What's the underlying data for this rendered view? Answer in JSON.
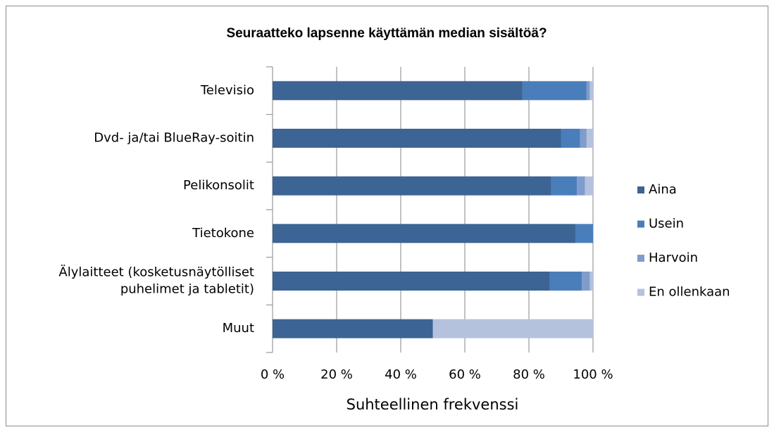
{
  "chart_data": {
    "type": "stacked_barh",
    "title": "Seuraatteko lapsenne käyttämän median sisältöä?",
    "x_label": "Suhteellinen frekvenssi",
    "categories": [
      "Televisio",
      "Dvd- ja/tai BlueRay-soitin",
      "Pelikonsolit",
      "Tietokone",
      "Älylaitteet (kosketusnäytölliset\npuhelimet ja tabletit)",
      "Muut"
    ],
    "series": [
      {
        "name": "Aina",
        "color": "#3c6494",
        "values": [
          78,
          90,
          87,
          94.5,
          86.5,
          50
        ]
      },
      {
        "name": "Usein",
        "color": "#4a7ebb",
        "values": [
          20,
          6,
          8,
          5.5,
          10,
          0
        ]
      },
      {
        "name": "Harvoin",
        "color": "#7f9ccc",
        "values": [
          1,
          2,
          2.5,
          0,
          2.5,
          0
        ]
      },
      {
        "name": "En ollenkaan",
        "color": "#b4c2de",
        "values": [
          1,
          2,
          2.5,
          0,
          1,
          50
        ]
      }
    ],
    "xlim": [
      0,
      100
    ],
    "xticks": [
      {
        "value": 0,
        "label": "0 %"
      },
      {
        "value": 20,
        "label": "20 %"
      },
      {
        "value": 40,
        "label": "40 %"
      },
      {
        "value": 60,
        "label": "60 %"
      },
      {
        "value": 80,
        "label": "80 %"
      },
      {
        "value": 100,
        "label": "100 %"
      }
    ],
    "grid": true,
    "legend": "right"
  }
}
